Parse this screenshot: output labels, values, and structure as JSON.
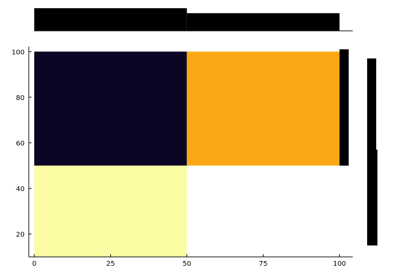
{
  "chart_data": {
    "type": "heatmap",
    "title": "",
    "xlabel": "",
    "ylabel": "",
    "xlim": [
      0,
      103
    ],
    "ylim": [
      10,
      101
    ],
    "x_ticks": [
      0,
      25,
      50,
      75,
      100
    ],
    "y_ticks": [
      20,
      40,
      60,
      80,
      100
    ],
    "x_tick_labels": [
      "0",
      "25",
      "50",
      "75",
      "100"
    ],
    "y_tick_labels": [
      "20",
      "40",
      "60",
      "80",
      "100"
    ],
    "grid": false,
    "legend": "none",
    "cells": [
      {
        "x": [
          0,
          50
        ],
        "y": [
          50,
          100
        ],
        "color": "#0b0623"
      },
      {
        "x": [
          50,
          100
        ],
        "y": [
          50,
          100
        ],
        "color": "#fba814"
      },
      {
        "x": [
          0,
          50
        ],
        "y": [
          10,
          50
        ],
        "color": "#fbfca3"
      },
      {
        "x": [
          50,
          100
        ],
        "y": [
          10,
          50
        ],
        "color": "#ffffff"
      },
      {
        "x": [
          100,
          103
        ],
        "y": [
          50,
          101
        ],
        "color": "#000000"
      }
    ],
    "top_marginal": {
      "type": "bar",
      "bins": [
        {
          "x": [
            0,
            50
          ],
          "value": 1.0
        },
        {
          "x": [
            50,
            100
          ],
          "value": 0.78
        }
      ],
      "color": "#000000"
    },
    "right_marginal": {
      "type": "bar",
      "bins": [
        {
          "y": [
            50,
            97
          ],
          "value": 0.88
        },
        {
          "y": [
            15,
            57
          ],
          "value": 1.0
        }
      ],
      "color": "#000000"
    }
  }
}
